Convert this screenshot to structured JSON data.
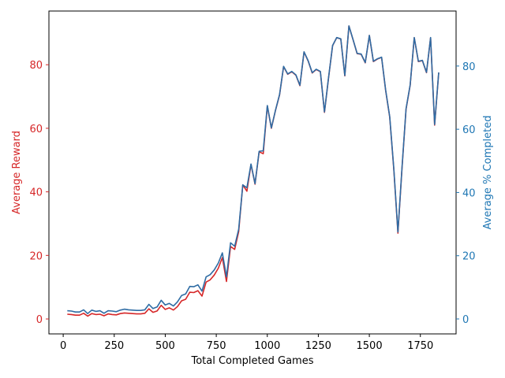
{
  "chart_data": {
    "type": "line",
    "title": "",
    "xlabel": "Total Completed Games",
    "ylabel_left": "Average Reward",
    "ylabel_right": "Average % Completed",
    "xlim": [
      -70,
      1925
    ],
    "ylim_left": [
      -4.7,
      96.9
    ],
    "ylim_right": [
      -4.73,
      97.4
    ],
    "x_ticks": [
      0,
      250,
      500,
      750,
      1000,
      1250,
      1500,
      1750
    ],
    "y_ticks_left": [
      0,
      20,
      40,
      60,
      80
    ],
    "y_ticks_right": [
      0,
      20,
      40,
      60,
      80
    ],
    "grid": false,
    "legend": "none",
    "colors": {
      "left_axis": "#d62728",
      "right_axis": "#1f77b4",
      "reward_line": "#d62728",
      "completed_line": "#2e6ca4"
    },
    "series": [
      {
        "axis": "left",
        "x": [
          20,
          40,
          60,
          80,
          100,
          120,
          140,
          160,
          180,
          200,
          220,
          240,
          260,
          280,
          300,
          320,
          340,
          360,
          380,
          400,
          420,
          440,
          460,
          480,
          500,
          520,
          540,
          560,
          580,
          600,
          620,
          640,
          660,
          680,
          700,
          720,
          740,
          760,
          780,
          800,
          820,
          840,
          860,
          880,
          900,
          920,
          940,
          960,
          980,
          1000,
          1020,
          1040,
          1060,
          1080,
          1100,
          1120,
          1140,
          1160,
          1180,
          1200,
          1220,
          1240,
          1260,
          1280,
          1300,
          1320,
          1340,
          1360,
          1380,
          1400,
          1420,
          1440,
          1460,
          1480,
          1500,
          1520,
          1540,
          1560,
          1580,
          1600,
          1620,
          1640,
          1660,
          1680,
          1700,
          1720,
          1740,
          1760,
          1780,
          1800,
          1820,
          1840
        ],
        "values": [
          1.5,
          1.4,
          1.2,
          1.2,
          1.8,
          0.9,
          1.7,
          1.4,
          1.5,
          1.0,
          1.6,
          1.4,
          1.3,
          1.7,
          1.9,
          1.8,
          1.7,
          1.6,
          1.6,
          1.8,
          3.2,
          2.1,
          2.5,
          4.3,
          3.0,
          3.5,
          2.8,
          3.9,
          5.7,
          6.2,
          8.4,
          8.3,
          8.9,
          7.2,
          11.6,
          12.3,
          13.8,
          16.0,
          19.3,
          11.8,
          22.8,
          21.9,
          27.5,
          42.2,
          40.2,
          48.6,
          42.4,
          52.6,
          52.0,
          67.0,
          60.0,
          65.6,
          70.5,
          79.4,
          77.0,
          77.8,
          76.7,
          73.4,
          84.0,
          81.2,
          77.4,
          78.5,
          77.8,
          65.0,
          75.7,
          86.0,
          88.5,
          88.1,
          76.5,
          92.2,
          87.9,
          83.5,
          83.3,
          80.6,
          89.2,
          81.0,
          81.8,
          82.3,
          71.8,
          63.5,
          47.0,
          27.0,
          47.5,
          66.0,
          73.5,
          88.5,
          81.0,
          81.3,
          77.5,
          88.5,
          61.0,
          77.5
        ]
      },
      {
        "axis": "right",
        "x": [
          20,
          40,
          60,
          80,
          100,
          120,
          140,
          160,
          180,
          200,
          220,
          240,
          260,
          280,
          300,
          320,
          340,
          360,
          380,
          400,
          420,
          440,
          460,
          480,
          500,
          520,
          540,
          560,
          580,
          600,
          620,
          640,
          660,
          680,
          700,
          720,
          740,
          760,
          780,
          800,
          820,
          840,
          860,
          880,
          900,
          920,
          940,
          960,
          980,
          1000,
          1020,
          1040,
          1060,
          1080,
          1100,
          1120,
          1140,
          1160,
          1180,
          1200,
          1220,
          1240,
          1260,
          1280,
          1300,
          1320,
          1340,
          1360,
          1380,
          1400,
          1420,
          1440,
          1460,
          1480,
          1500,
          1520,
          1540,
          1560,
          1580,
          1600,
          1620,
          1640,
          1660,
          1680,
          1700,
          1720,
          1740,
          1760,
          1780,
          1800,
          1820,
          1840
        ],
        "values": [
          2.6,
          2.5,
          2.2,
          2.2,
          2.9,
          1.7,
          2.8,
          2.4,
          2.6,
          1.8,
          2.6,
          2.5,
          2.3,
          2.8,
          3.1,
          2.9,
          2.8,
          2.7,
          2.7,
          2.9,
          4.6,
          3.3,
          3.8,
          5.9,
          4.4,
          4.9,
          4.1,
          5.4,
          7.4,
          7.9,
          10.3,
          10.2,
          10.8,
          8.8,
          13.3,
          14.0,
          15.5,
          17.7,
          20.9,
          13.3,
          24.1,
          23.0,
          28.4,
          42.4,
          41.5,
          49.0,
          42.8,
          53.0,
          53.2,
          67.5,
          60.4,
          66.0,
          71.0,
          79.9,
          77.5,
          78.3,
          77.2,
          73.9,
          84.5,
          81.7,
          77.9,
          79.0,
          78.3,
          65.5,
          76.2,
          86.5,
          89.0,
          88.6,
          77.0,
          92.7,
          88.4,
          84.0,
          83.8,
          81.1,
          89.7,
          81.5,
          82.3,
          82.8,
          72.3,
          64.0,
          47.5,
          27.5,
          48.0,
          66.5,
          74.0,
          89.0,
          81.5,
          81.8,
          78.0,
          89.0,
          61.5,
          78.0
        ]
      }
    ]
  }
}
